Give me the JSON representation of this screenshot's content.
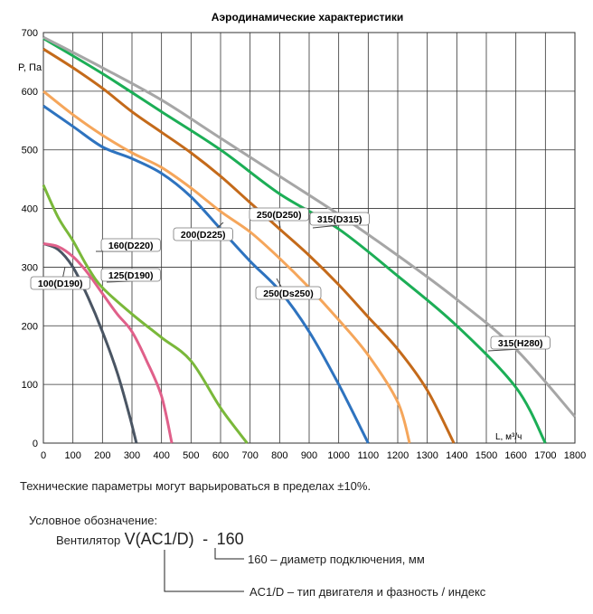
{
  "chart_data": {
    "type": "line",
    "title": "Аэродинамические характеристики",
    "ylabel": "P, Па",
    "xlabel": "L, м³/ч",
    "xlim": [
      0,
      1800
    ],
    "ylim": [
      0,
      700
    ],
    "xticks": [
      0,
      100,
      200,
      300,
      400,
      500,
      600,
      700,
      800,
      900,
      1000,
      1100,
      1200,
      1300,
      1400,
      1500,
      1600,
      1700,
      1800
    ],
    "yticks": [
      0,
      100,
      200,
      300,
      400,
      500,
      600,
      700
    ],
    "grid": true,
    "series": [
      {
        "name": "100(D190)",
        "color": "#4a5563",
        "points": [
          [
            0,
            340
          ],
          [
            50,
            330
          ],
          [
            100,
            300
          ],
          [
            150,
            250
          ],
          [
            200,
            190
          ],
          [
            250,
            120
          ],
          [
            290,
            50
          ],
          [
            315,
            0
          ]
        ]
      },
      {
        "name": "160(D220)",
        "color": "#e0608a",
        "points": [
          [
            0,
            340
          ],
          [
            50,
            335
          ],
          [
            100,
            318
          ],
          [
            150,
            290
          ],
          [
            200,
            255
          ],
          [
            250,
            220
          ],
          [
            300,
            190
          ],
          [
            350,
            140
          ],
          [
            400,
            80
          ],
          [
            435,
            0
          ]
        ]
      },
      {
        "name": "125(D190)",
        "color": "#7ab83a",
        "points": [
          [
            0,
            440
          ],
          [
            50,
            385
          ],
          [
            100,
            345
          ],
          [
            150,
            300
          ],
          [
            200,
            265
          ],
          [
            300,
            220
          ],
          [
            400,
            180
          ],
          [
            500,
            140
          ],
          [
            600,
            60
          ],
          [
            690,
            0
          ]
        ]
      },
      {
        "name": "200(D225)",
        "color": "#2e73bf",
        "points": [
          [
            0,
            575
          ],
          [
            100,
            540
          ],
          [
            200,
            505
          ],
          [
            300,
            485
          ],
          [
            400,
            460
          ],
          [
            500,
            420
          ],
          [
            600,
            365
          ],
          [
            700,
            310
          ],
          [
            800,
            260
          ],
          [
            900,
            190
          ],
          [
            1000,
            100
          ],
          [
            1100,
            0
          ]
        ]
      },
      {
        "name": "250(Ds250)",
        "color": "#f5a65b",
        "points": [
          [
            0,
            600
          ],
          [
            100,
            560
          ],
          [
            200,
            525
          ],
          [
            300,
            495
          ],
          [
            400,
            470
          ],
          [
            500,
            435
          ],
          [
            600,
            395
          ],
          [
            700,
            360
          ],
          [
            800,
            315
          ],
          [
            900,
            265
          ],
          [
            1000,
            210
          ],
          [
            1100,
            150
          ],
          [
            1200,
            70
          ],
          [
            1240,
            0
          ]
        ]
      },
      {
        "name": "250(D250)",
        "color": "#c46a1a",
        "points": [
          [
            0,
            672
          ],
          [
            100,
            640
          ],
          [
            200,
            605
          ],
          [
            300,
            565
          ],
          [
            400,
            530
          ],
          [
            500,
            495
          ],
          [
            600,
            455
          ],
          [
            700,
            410
          ],
          [
            800,
            365
          ],
          [
            900,
            320
          ],
          [
            1000,
            270
          ],
          [
            1100,
            215
          ],
          [
            1200,
            160
          ],
          [
            1300,
            90
          ],
          [
            1390,
            0
          ]
        ]
      },
      {
        "name": "315(D315)",
        "color": "#1cae56",
        "points": [
          [
            0,
            690
          ],
          [
            200,
            630
          ],
          [
            400,
            565
          ],
          [
            600,
            500
          ],
          [
            800,
            425
          ],
          [
            1000,
            365
          ],
          [
            1200,
            285
          ],
          [
            1400,
            200
          ],
          [
            1600,
            95
          ],
          [
            1700,
            0
          ]
        ]
      },
      {
        "name": "315(H280)",
        "color": "#a6a6a6",
        "points": [
          [
            0,
            692
          ],
          [
            200,
            640
          ],
          [
            400,
            585
          ],
          [
            600,
            520
          ],
          [
            800,
            455
          ],
          [
            1000,
            390
          ],
          [
            1200,
            320
          ],
          [
            1400,
            245
          ],
          [
            1600,
            160
          ],
          [
            1800,
            45
          ]
        ]
      }
    ],
    "labels": [
      {
        "text": "100(D190)",
        "series": "100(D190)"
      },
      {
        "text": "160(D220)",
        "series": "160(D220)"
      },
      {
        "text": "125(D190)",
        "series": "125(D190)"
      },
      {
        "text": "200(D225)",
        "series": "200(D225)"
      },
      {
        "text": "250(Ds250)",
        "series": "250(Ds250)"
      },
      {
        "text": "250(D250)",
        "series": "250(D250)"
      },
      {
        "text": "315(D315)",
        "series": "315(D315)"
      },
      {
        "text": "315(H280)",
        "series": "315(H280)"
      }
    ]
  },
  "note": "Технические параметры могут варьироваться в пределах ±10%.",
  "legend": {
    "title": "Условное обозначение:",
    "prefix": "Вентилятор",
    "model": "V(AC1/D)",
    "separator": " - ",
    "size": "160",
    "explain_size": "160 – диаметр подключения, мм",
    "explain_type": "AC1/D – тип двигателя и фазность / индекс"
  }
}
